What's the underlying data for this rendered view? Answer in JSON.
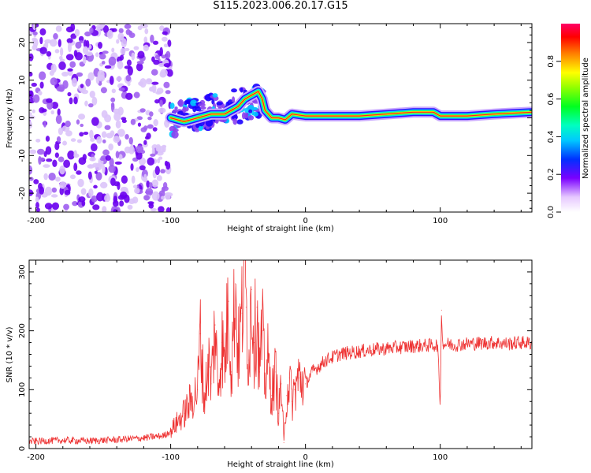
{
  "title": "S115.2023.006.20.17.G15",
  "chart_data": [
    {
      "type": "heatmap",
      "title": "S115.2023.006.20.17.G15",
      "xlabel": "Height of straight line (km)",
      "ylabel": "Frequency (Hz)",
      "xlim": [
        -205,
        168
      ],
      "ylim": [
        -25,
        25
      ],
      "xticks": [
        -200,
        -100,
        0,
        100
      ],
      "yticks": [
        -20,
        -10,
        0,
        10,
        20
      ],
      "colorbar": {
        "label": "Normalized spectral amplitude",
        "range": [
          0.0,
          1.0
        ],
        "ticks": [
          "0.0",
          "0.2",
          "0.4",
          "0.6",
          "0.8"
        ]
      },
      "ridge": {
        "x": [
          -100,
          -90,
          -80,
          -70,
          -60,
          -50,
          -45,
          -40,
          -35,
          -32,
          -30,
          -25,
          -20,
          -15,
          -10,
          0,
          20,
          40,
          60,
          80,
          95,
          100,
          120,
          140,
          168
        ],
        "y": [
          0,
          -1,
          0,
          1,
          1,
          3,
          5,
          6,
          7,
          5,
          2,
          0,
          0,
          -0.5,
          1,
          0.5,
          0.5,
          0.5,
          1,
          1.5,
          1.5,
          0.5,
          0.5,
          1,
          1.5
        ]
      }
    },
    {
      "type": "line",
      "xlabel": "Height of straight line (km)",
      "ylabel": "SNR (10 * v/v)",
      "xlim": [
        -205,
        168
      ],
      "ylim": [
        0,
        320
      ],
      "xticks": [
        -200,
        -100,
        0,
        100
      ],
      "yticks": [
        0,
        100,
        200,
        300
      ],
      "series": [
        {
          "name": "SNR",
          "color": "#ee3333",
          "x": [
            -205,
            -180,
            -160,
            -140,
            -120,
            -105,
            -100,
            -95,
            -90,
            -85,
            -80,
            -78,
            -75,
            -72,
            -70,
            -67,
            -65,
            -62,
            -60,
            -57,
            -55,
            -52,
            -50,
            -47,
            -45,
            -44,
            -42,
            -40,
            -38,
            -36,
            -34,
            -32,
            -30,
            -28,
            -25,
            -22,
            -20,
            -18,
            -16,
            -14,
            -12,
            -10,
            -8,
            -5,
            0,
            5,
            10,
            15,
            20,
            25,
            30,
            40,
            50,
            60,
            70,
            80,
            90,
            98,
            100,
            101,
            102,
            104,
            110,
            120,
            130,
            140,
            150,
            160,
            168
          ],
          "y": [
            12,
            14,
            13,
            15,
            18,
            22,
            30,
            45,
            60,
            80,
            100,
            195,
            80,
            150,
            110,
            210,
            100,
            180,
            140,
            250,
            130,
            280,
            160,
            230,
            330,
            240,
            150,
            270,
            180,
            240,
            130,
            200,
            110,
            150,
            90,
            130,
            60,
            110,
            10,
            90,
            120,
            80,
            100,
            120,
            110,
            130,
            140,
            150,
            155,
            160,
            162,
            165,
            168,
            170,
            172,
            174,
            175,
            176,
            75,
            235,
            175,
            178,
            176,
            178,
            179,
            180,
            178,
            180,
            179
          ]
        }
      ]
    }
  ]
}
